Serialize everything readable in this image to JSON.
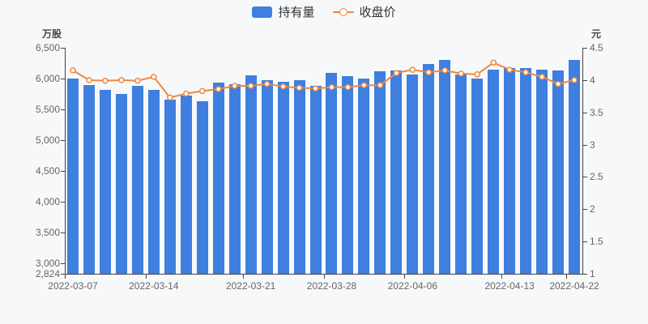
{
  "background": "#f7f8fa",
  "chart_data": {
    "type": "bar+line",
    "legend_position": "top-center",
    "grid": false,
    "left_axis": {
      "unit": "万股",
      "range": [
        2824,
        6500
      ],
      "ticks": [
        {
          "label": "6,500",
          "value": 6500
        },
        {
          "label": "6,000",
          "value": 6000
        },
        {
          "label": "5,500",
          "value": 5500
        },
        {
          "label": "5,000",
          "value": 5000
        },
        {
          "label": "4,500",
          "value": 4500
        },
        {
          "label": "4,000",
          "value": 4000
        },
        {
          "label": "3,500",
          "value": 3500
        },
        {
          "label": "3,000",
          "value": 3000
        },
        {
          "label": "2,824",
          "value": 2824
        }
      ]
    },
    "right_axis": {
      "unit": "元",
      "range": [
        1,
        4.5
      ],
      "ticks": [
        {
          "label": "4.5",
          "value": 4.5
        },
        {
          "label": "4",
          "value": 4
        },
        {
          "label": "3.5",
          "value": 3.5
        },
        {
          "label": "3",
          "value": 3
        },
        {
          "label": "2.5",
          "value": 2.5
        },
        {
          "label": "2",
          "value": 2
        },
        {
          "label": "1.5",
          "value": 1.5
        },
        {
          "label": "1",
          "value": 1
        }
      ]
    },
    "x_axis": {
      "n_points": 32,
      "labels": [
        {
          "text": "2022-03-07",
          "index": 0
        },
        {
          "text": "2022-03-14",
          "index": 5
        },
        {
          "text": "2022-03-21",
          "index": 11
        },
        {
          "text": "2022-03-28",
          "index": 16
        },
        {
          "text": "2022-04-06",
          "index": 21
        },
        {
          "text": "2022-04-13",
          "index": 27
        },
        {
          "text": "2022-04-22",
          "index": 31
        }
      ]
    },
    "series": [
      {
        "name": "持有量",
        "type": "bar",
        "yaxis": "left",
        "color": "#3e7fdf",
        "values": [
          6000,
          5890,
          5820,
          5750,
          5880,
          5810,
          5660,
          5720,
          5630,
          5940,
          5910,
          6050,
          5970,
          5950,
          5970,
          5880,
          6090,
          6040,
          6000,
          6120,
          6130,
          6070,
          6240,
          6300,
          6070,
          6000,
          6150,
          6170,
          6170,
          6140,
          6130,
          6300
        ]
      },
      {
        "name": "收盘价",
        "type": "line",
        "yaxis": "right",
        "color": "#f0883c",
        "marker_fill": "#ffffff",
        "values": [
          4.15,
          4.0,
          3.99,
          4.0,
          3.99,
          4.05,
          3.73,
          3.79,
          3.83,
          3.86,
          3.91,
          3.91,
          3.94,
          3.9,
          3.88,
          3.87,
          3.89,
          3.89,
          3.92,
          3.92,
          4.11,
          4.16,
          4.12,
          4.15,
          4.1,
          4.09,
          4.27,
          4.16,
          4.12,
          4.05,
          3.94,
          4.0
        ]
      }
    ]
  }
}
